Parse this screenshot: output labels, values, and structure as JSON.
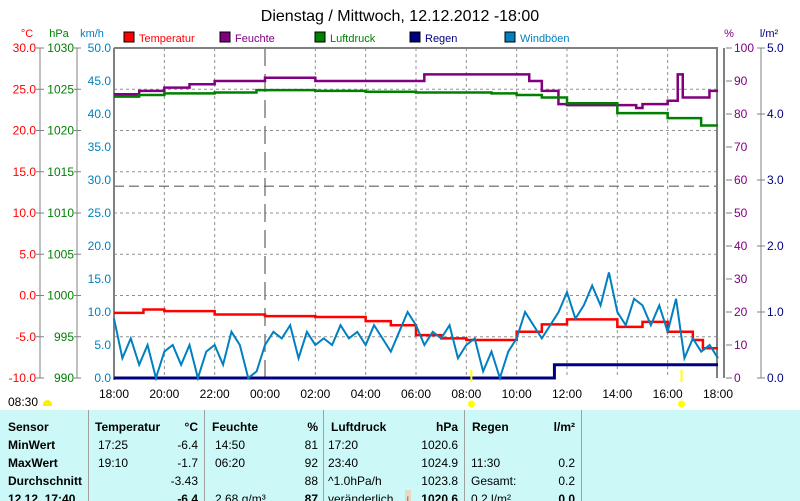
{
  "title": "Dienstag / Mittwoch, 12.12.2012  -18:00",
  "sun_label": "08:30",
  "colors": {
    "temp": "#ff0000",
    "hum": "#800080",
    "press": "#008000",
    "rain": "#000080",
    "wind": "#0080c0",
    "grid": "#808080",
    "table_bg": "#ccf8f8"
  },
  "chart_data": {
    "type": "line",
    "title": "Dienstag / Mittwoch, 12.12.2012  -18:00",
    "x_ticks": [
      "18:00",
      "20:00",
      "22:00",
      "00:00",
      "02:00",
      "04:00",
      "06:00",
      "08:00",
      "10:00",
      "12:00",
      "14:00",
      "16:00",
      "18:00"
    ],
    "x_range_hours": [
      0,
      24
    ],
    "axes": {
      "temp": {
        "unit": "°C",
        "range": [
          -10,
          30
        ],
        "ticks": [
          "30.0",
          "25.0",
          "20.0",
          "15.0",
          "10.0",
          "5.0",
          "0.0",
          "-5.0",
          "-10.0"
        ]
      },
      "press": {
        "unit": "hPa",
        "range": [
          990,
          1030
        ],
        "ticks": [
          "1030",
          "1025",
          "1020",
          "1015",
          "1010",
          "1005",
          "1000",
          "995",
          "990"
        ]
      },
      "wind": {
        "unit": "km/h",
        "range": [
          0,
          50
        ],
        "ticks": [
          "50.0",
          "45.0",
          "40.0",
          "35.0",
          "30.0",
          "25.0",
          "20.0",
          "15.0",
          "10.0",
          "5.0",
          "0.0"
        ]
      },
      "hum": {
        "unit": "%",
        "range": [
          0,
          100
        ],
        "ticks": [
          "100",
          "90",
          "80",
          "70",
          "60",
          "50",
          "40",
          "30",
          "20",
          "10",
          "0"
        ]
      },
      "rain": {
        "unit": "l/m²",
        "range": [
          0,
          5
        ],
        "ticks": [
          "5.0",
          "4.0",
          "3.0",
          "2.0",
          "1.0",
          "0.0"
        ]
      }
    },
    "legend": [
      "Temperatur",
      "Feuchte",
      "Luftdruck",
      "Regen",
      "Windböen"
    ],
    "reference_lines": {
      "pressure_hPa": 1013.25,
      "midnight_hour": 6
    },
    "sun_markers_hours": [
      14.2,
      22.55
    ],
    "series": [
      {
        "name": "Temperatur",
        "axis": "temp",
        "x": [
          0,
          1.17,
          2,
          4,
          6,
          8,
          10,
          11,
          12,
          13,
          14,
          16,
          17,
          18,
          19,
          20,
          21,
          22,
          23,
          23.4,
          24
        ],
        "values": [
          -2.1,
          -1.7,
          -1.9,
          -2.3,
          -2.5,
          -2.6,
          -3.1,
          -3.6,
          -4.8,
          -5.2,
          -5.4,
          -4.4,
          -3.5,
          -2.9,
          -2.9,
          -3.8,
          -3.2,
          -4.4,
          -5.4,
          -6.4,
          -6.4
        ]
      },
      {
        "name": "Feuchte",
        "axis": "hum",
        "x": [
          0,
          1,
          2,
          3,
          4,
          6,
          7,
          8,
          12.33,
          16,
          16.5,
          17,
          17.66,
          18,
          20,
          20.75,
          21,
          22,
          22.3,
          22.4,
          22.6,
          23,
          23.66,
          24
        ],
        "values": [
          86,
          87,
          88,
          89,
          90,
          91,
          91,
          90,
          92,
          92,
          90,
          87,
          83,
          82.7,
          82.7,
          81.8,
          83,
          84,
          84,
          92,
          85,
          85,
          87,
          87
        ]
      },
      {
        "name": "Luftdruck",
        "axis": "press",
        "x": [
          0,
          1,
          2,
          4,
          5.66,
          8,
          10,
          12,
          14,
          15,
          16,
          17,
          18,
          20,
          22,
          23.33,
          24
        ],
        "values": [
          1024.1,
          1024.3,
          1024.5,
          1024.6,
          1024.9,
          1024.8,
          1024.7,
          1024.6,
          1024.6,
          1024.5,
          1024.3,
          1024.0,
          1023.3,
          1022.1,
          1021.5,
          1020.6,
          1020.6
        ]
      },
      {
        "name": "Regen",
        "axis": "rain",
        "x": [
          0,
          17.5,
          17.5,
          24
        ],
        "values": [
          0,
          0,
          0.2,
          0.2
        ]
      },
      {
        "name": "Windböen",
        "axis": "wind",
        "values": [
          9,
          3,
          6,
          2,
          5,
          0,
          4,
          5,
          2,
          5,
          0,
          4,
          5,
          2,
          7,
          5,
          0,
          1,
          5,
          7,
          6,
          8,
          3,
          7,
          5,
          6,
          5,
          8,
          6,
          7,
          5,
          8,
          6,
          4,
          7,
          10,
          8,
          5,
          7,
          6,
          8,
          3,
          5,
          6,
          1,
          4,
          0,
          4,
          6,
          10,
          8,
          6,
          8,
          10,
          13,
          9,
          11,
          14,
          11,
          16,
          10,
          8,
          12,
          11,
          8,
          11,
          7,
          12,
          3,
          6,
          4,
          5,
          3
        ]
      }
    ]
  },
  "table": {
    "headers": [
      {
        "label": "Sensor"
      },
      {
        "label": "Temperatur",
        "unit": "°C"
      },
      {
        "label": "Feuchte",
        "unit": "%"
      },
      {
        "label": "Luftdruck",
        "unit": "hPa"
      },
      {
        "label": "Regen",
        "unit": "l/m²"
      }
    ],
    "rows": [
      {
        "label": "MinWert",
        "t_time": "17:25",
        "t_val": "-6.4",
        "h_time": "14:50",
        "h_val": "81",
        "p_time": "17:20",
        "p_val": "1020.6",
        "r_time": "",
        "r_val": ""
      },
      {
        "label": "MaxWert",
        "t_time": "19:10",
        "t_val": "-1.7",
        "h_time": "06:20",
        "h_val": "92",
        "p_time": "23:40",
        "p_val": "1024.9",
        "r_time": "11:30",
        "r_val": "0.2"
      },
      {
        "label": "Durchschnitt",
        "t_time": "",
        "t_val": "-3.43",
        "h_time": "",
        "h_val": "88",
        "p_time": "^1.0hPa/h",
        "p_val": "1023.8",
        "r_time": "Gesamt:",
        "r_val": "0.2"
      },
      {
        "label": "12.12. 17:40",
        "t_time": "",
        "t_val": "-6.4",
        "h_time": "2.68 g/m³",
        "h_val": "87",
        "p_time": "veränderlich",
        "p_val": "1020.6",
        "r_time": "0.2 l/m²",
        "r_val": "0.0"
      }
    ],
    "trend_arrow": "↓"
  }
}
